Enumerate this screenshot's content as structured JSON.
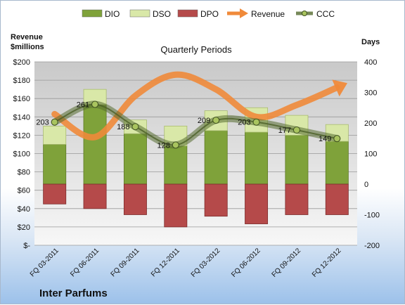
{
  "chart_data": {
    "type": "bar",
    "title": "Quarterly Periods",
    "company": "Inter Parfums",
    "categories": [
      "FQ 03-2011",
      "FQ 06-2011",
      "FQ 09-2011",
      "FQ 12-2011",
      "FQ 03-2012",
      "FQ 06-2012",
      "FQ 09-2012",
      "FQ 12-2012"
    ],
    "y_left": {
      "label_line1": "Revenue",
      "label_line2": "$millions",
      "min": 0,
      "max": 200,
      "ticks": [
        "$-",
        "$20",
        "$40",
        "$60",
        "$80",
        "$100",
        "$120",
        "$140",
        "$160",
        "$180",
        "$200"
      ]
    },
    "y_right": {
      "label": "Days",
      "min": -200,
      "max": 400,
      "ticks": [
        "-200",
        "-100",
        "0",
        "100",
        "200",
        "300",
        "400"
      ]
    },
    "grid": true,
    "legend_position": "top",
    "series": [
      {
        "name": "DIO",
        "axis": "right",
        "kind": "stacked-bar",
        "color": "#7fa23a",
        "values": [
          130,
          260,
          165,
          125,
          175,
          170,
          160,
          140
        ]
      },
      {
        "name": "DSO",
        "axis": "right",
        "kind": "stacked-bar",
        "color": "#d9e8a8",
        "values": [
          60,
          50,
          45,
          65,
          65,
          80,
          65,
          55
        ]
      },
      {
        "name": "DPO",
        "axis": "right",
        "kind": "negative-bar",
        "color": "#b54a4a",
        "values": [
          -65,
          -80,
          -100,
          -140,
          -105,
          -130,
          -100,
          -100
        ]
      },
      {
        "name": "Revenue",
        "axis": "left",
        "kind": "trend-arrow",
        "color": "#f08a3a",
        "values": [
          143,
          118,
          163,
          186,
          170,
          140,
          153,
          172
        ]
      },
      {
        "name": "CCC",
        "axis": "right",
        "kind": "line",
        "color": "#556b2f",
        "values": [
          203,
          261,
          188,
          128,
          209,
          203,
          177,
          149
        ]
      }
    ]
  }
}
